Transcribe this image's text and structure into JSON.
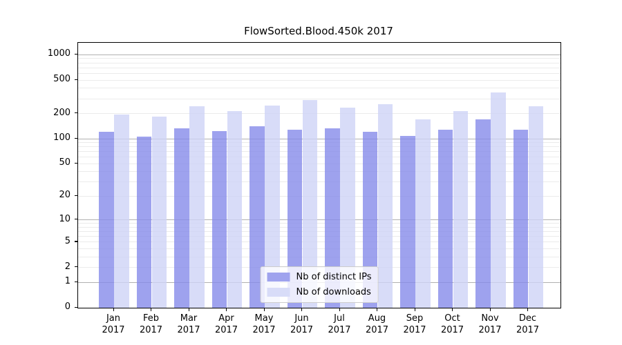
{
  "title": "FlowSorted.Blood.450k 2017",
  "legend": {
    "items": [
      {
        "label": "Nb of distinct IPs",
        "color": "#9fa3ee"
      },
      {
        "label": "Nb of downloads",
        "color": "#d8dcf8"
      }
    ],
    "position": "lower center"
  },
  "colors": {
    "bar_distinct_ips": "#9fa3ee",
    "bar_downloads": "#d8dcf8",
    "grid_major": "#b0b0b0",
    "grid_minor": "#ebebeb",
    "axis": "#000000",
    "background": "#ffffff"
  },
  "chart_data": {
    "type": "bar",
    "title": "FlowSorted.Blood.450k 2017",
    "categories": [
      "Jan 2017",
      "Feb 2017",
      "Mar 2017",
      "Apr 2017",
      "May 2017",
      "Jun 2017",
      "Jul 2017",
      "Aug 2017",
      "Sep 2017",
      "Oct 2017",
      "Nov 2017",
      "Dec 2017"
    ],
    "series": [
      {
        "name": "Nb of distinct IPs",
        "color": "#9fa3ee",
        "values": [
          122,
          107,
          132,
          124,
          140,
          129,
          132,
          122,
          109,
          129,
          171,
          129
        ]
      },
      {
        "name": "Nb of downloads",
        "color": "#d8dcf8",
        "values": [
          196,
          184,
          246,
          214,
          247,
          292,
          235,
          258,
          171,
          214,
          358,
          243
        ]
      }
    ],
    "xlabel": "",
    "ylabel": "",
    "yscale": "log1p",
    "ylim": [
      0,
      1387
    ],
    "yticks": [
      0,
      1,
      2,
      5,
      10,
      20,
      50,
      100,
      200,
      500,
      1000
    ],
    "grid": "both",
    "legend_position": "lower center"
  }
}
